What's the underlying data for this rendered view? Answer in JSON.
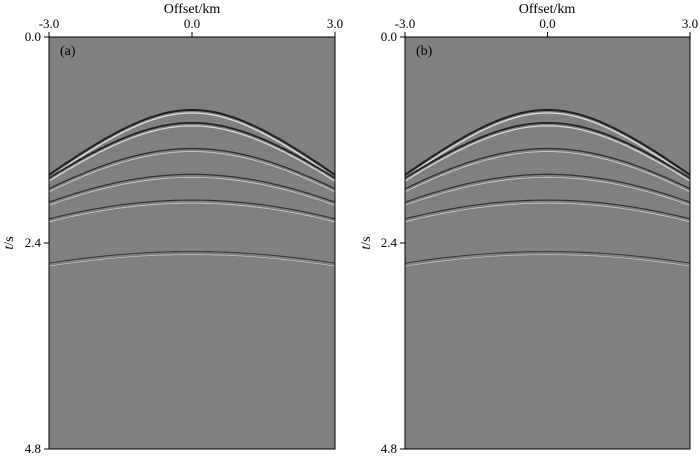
{
  "chart_data": [
    {
      "type": "heatmap",
      "panel_label": "(a)",
      "xlabel": "Offset/km",
      "ylabel_italic": "t",
      "ylabel_unit": "/s",
      "xlim": [
        -3.0,
        3.0
      ],
      "ylim": [
        0.0,
        4.8
      ],
      "x_ticks": [
        "-3.0",
        "0.0",
        "3.0"
      ],
      "y_ticks": [
        "0.0",
        "2.4",
        "4.8"
      ],
      "x_tick_values": [
        -3.0,
        0.0,
        3.0
      ],
      "y_tick_values": [
        0.0,
        2.4,
        4.8
      ],
      "background_color": "#808080",
      "events": [
        {
          "apex_offset": 0.0,
          "t0": 0.85,
          "velocity": 2.2,
          "amplitude": 1.0
        },
        {
          "apex_offset": 0.0,
          "t0": 1.0,
          "velocity": 2.3,
          "amplitude": 0.9
        },
        {
          "apex_offset": 0.0,
          "t0": 1.3,
          "velocity": 2.5,
          "amplitude": 0.6
        },
        {
          "apex_offset": 0.0,
          "t0": 1.6,
          "velocity": 2.8,
          "amplitude": 0.55
        },
        {
          "apex_offset": 0.0,
          "t0": 1.9,
          "velocity": 3.2,
          "amplitude": 0.5
        },
        {
          "apex_offset": 0.0,
          "t0": 2.5,
          "velocity": 3.6,
          "amplitude": 0.4
        }
      ]
    },
    {
      "type": "heatmap",
      "panel_label": "(b)",
      "xlabel": "Offset/km",
      "ylabel_italic": "t",
      "ylabel_unit": "/s",
      "xlim": [
        -3.0,
        3.0
      ],
      "ylim": [
        0.0,
        4.8
      ],
      "x_ticks": [
        "-3.0",
        "0.0",
        "3.0"
      ],
      "y_ticks": [
        "0.0",
        "2.4",
        "4.8"
      ],
      "x_tick_values": [
        -3.0,
        0.0,
        3.0
      ],
      "y_tick_values": [
        0.0,
        2.4,
        4.8
      ],
      "background_color": "#808080",
      "events": [
        {
          "apex_offset": 0.0,
          "t0": 0.85,
          "velocity": 2.2,
          "amplitude": 1.0
        },
        {
          "apex_offset": 0.0,
          "t0": 1.0,
          "velocity": 2.3,
          "amplitude": 0.9
        },
        {
          "apex_offset": 0.0,
          "t0": 1.3,
          "velocity": 2.5,
          "amplitude": 0.6
        },
        {
          "apex_offset": 0.0,
          "t0": 1.6,
          "velocity": 2.8,
          "amplitude": 0.55
        },
        {
          "apex_offset": 0.0,
          "t0": 1.9,
          "velocity": 3.2,
          "amplitude": 0.5
        },
        {
          "apex_offset": 0.0,
          "t0": 2.5,
          "velocity": 3.6,
          "amplitude": 0.4
        }
      ]
    }
  ]
}
